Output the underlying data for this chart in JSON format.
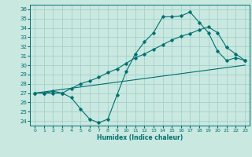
{
  "title": "",
  "xlabel": "Humidex (Indice chaleur)",
  "ylabel": "",
  "bg_color": "#c8e8e0",
  "grid_color": "#a0ccc8",
  "line_color": "#007070",
  "xlim": [
    -0.5,
    23.5
  ],
  "ylim": [
    23.5,
    36.5
  ],
  "yticks": [
    24,
    25,
    26,
    27,
    28,
    29,
    30,
    31,
    32,
    33,
    34,
    35,
    36
  ],
  "xticks": [
    0,
    1,
    2,
    3,
    4,
    5,
    6,
    7,
    8,
    9,
    10,
    11,
    12,
    13,
    14,
    15,
    16,
    17,
    18,
    19,
    20,
    21,
    22,
    23
  ],
  "line_zigzag": {
    "x": [
      0,
      1,
      2,
      3,
      4,
      5,
      6,
      7,
      8,
      9,
      10,
      11,
      12,
      13,
      14,
      15,
      16,
      17,
      18,
      19,
      20,
      21,
      22,
      23
    ],
    "y": [
      27.0,
      27.0,
      27.0,
      27.0,
      26.5,
      25.3,
      24.2,
      23.8,
      24.2,
      26.8,
      29.3,
      31.2,
      32.5,
      33.5,
      35.2,
      35.2,
      35.3,
      35.7,
      34.6,
      33.5,
      31.5,
      30.5,
      30.8,
      30.5
    ]
  },
  "line_straight": {
    "x": [
      0,
      23
    ],
    "y": [
      27.0,
      30.0
    ]
  },
  "line_upper": {
    "x": [
      0,
      1,
      2,
      3,
      4,
      5,
      6,
      7,
      8,
      9,
      10,
      11,
      12,
      13,
      14,
      15,
      16,
      17,
      18,
      19,
      20,
      21,
      22,
      23
    ],
    "y": [
      27.0,
      27.0,
      27.2,
      27.0,
      27.5,
      28.0,
      28.3,
      28.7,
      29.2,
      29.6,
      30.2,
      30.8,
      31.2,
      31.7,
      32.2,
      32.7,
      33.1,
      33.4,
      33.8,
      34.1,
      33.5,
      31.9,
      31.2,
      30.5
    ]
  }
}
